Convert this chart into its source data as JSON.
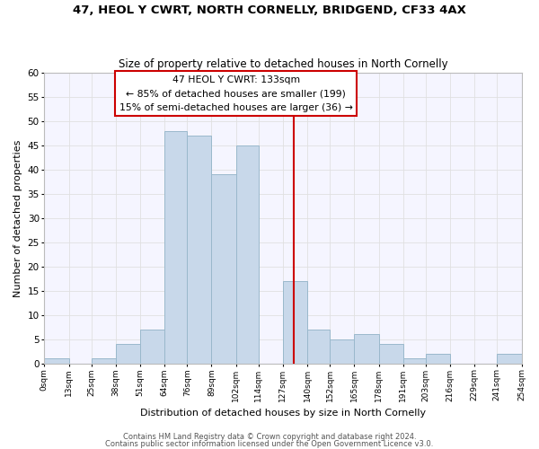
{
  "title": "47, HEOL Y CWRT, NORTH CORNELLY, BRIDGEND, CF33 4AX",
  "subtitle": "Size of property relative to detached houses in North Cornelly",
  "xlabel": "Distribution of detached houses by size in North Cornelly",
  "ylabel": "Number of detached properties",
  "footer_line1": "Contains HM Land Registry data © Crown copyright and database right 2024.",
  "footer_line2": "Contains public sector information licensed under the Open Government Licence v3.0.",
  "bar_edges": [
    0,
    13,
    25,
    38,
    51,
    64,
    76,
    89,
    102,
    114,
    127,
    140,
    152,
    165,
    178,
    191,
    203,
    216,
    229,
    241,
    254
  ],
  "bar_heights": [
    1,
    0,
    1,
    4,
    7,
    48,
    47,
    39,
    45,
    0,
    17,
    7,
    5,
    6,
    4,
    1,
    2,
    0,
    0,
    2
  ],
  "tick_labels": [
    "0sqm",
    "13sqm",
    "25sqm",
    "38sqm",
    "51sqm",
    "64sqm",
    "76sqm",
    "89sqm",
    "102sqm",
    "114sqm",
    "127sqm",
    "140sqm",
    "152sqm",
    "165sqm",
    "178sqm",
    "191sqm",
    "203sqm",
    "216sqm",
    "229sqm",
    "241sqm",
    "254sqm"
  ],
  "bar_color": "#c8d8ea",
  "bar_edge_color": "#9ab8cc",
  "vline_x": 133,
  "vline_color": "#cc0000",
  "ylim": [
    0,
    60
  ],
  "yticks": [
    0,
    5,
    10,
    15,
    20,
    25,
    30,
    35,
    40,
    45,
    50,
    55,
    60
  ],
  "annotation_title": "47 HEOL Y CWRT: 133sqm",
  "annotation_line1": "← 85% of detached houses are smaller (199)",
  "annotation_line2": "15% of semi-detached houses are larger (36) →",
  "annotation_box_color": "#ffffff",
  "annotation_box_edge": "#cc0000",
  "grid_color": "#e0e0e0",
  "bg_color": "#f5f5ff"
}
